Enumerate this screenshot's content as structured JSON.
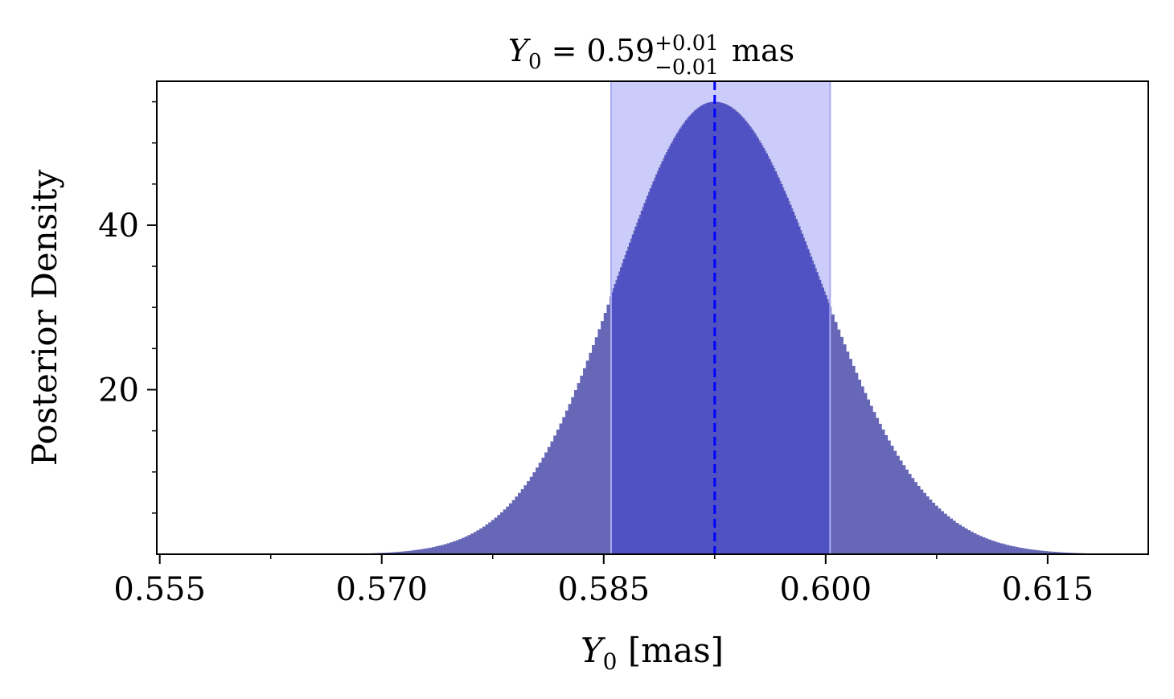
{
  "chart_data": {
    "type": "area",
    "title": {
      "symbol": "Y",
      "subscript": "0",
      "equals": " = ",
      "value": "0.59",
      "upper": "+0.01",
      "lower": "−0.01",
      "unit": " mas"
    },
    "xlabel": {
      "symbol": "Y",
      "subscript": "0",
      "unit": " [mas]"
    },
    "ylabel": "Posterior Density",
    "xlim": [
      0.5548,
      0.6218
    ],
    "ylim": [
      0,
      57.5
    ],
    "x_ticks": [
      {
        "value": 0.555,
        "label": "0.555"
      },
      {
        "value": 0.57,
        "label": "0.570"
      },
      {
        "value": 0.585,
        "label": "0.585"
      },
      {
        "value": 0.6,
        "label": "0.600"
      },
      {
        "value": 0.615,
        "label": "0.615"
      }
    ],
    "x_minor_step": 0.0075,
    "y_ticks": [
      {
        "value": 20,
        "label": "20"
      },
      {
        "value": 40,
        "label": "40"
      }
    ],
    "y_minor_step": 5,
    "distribution": {
      "peak_x": 0.5925,
      "peak_density": 55,
      "sigma_left": 0.0066,
      "sigma_right": 0.0071,
      "x_range": [
        0.566,
        0.6188
      ],
      "step_width": 0.0002
    },
    "credible_interval": [
      0.5855,
      0.6003
    ],
    "median": 0.5925,
    "colors": {
      "histogram_fill": "#6667b6",
      "interval_band": "#ccccfb",
      "histogram_in_band": "#5052c3",
      "band_edge": "#a9aaf4",
      "median_line": "#0000ff"
    }
  }
}
